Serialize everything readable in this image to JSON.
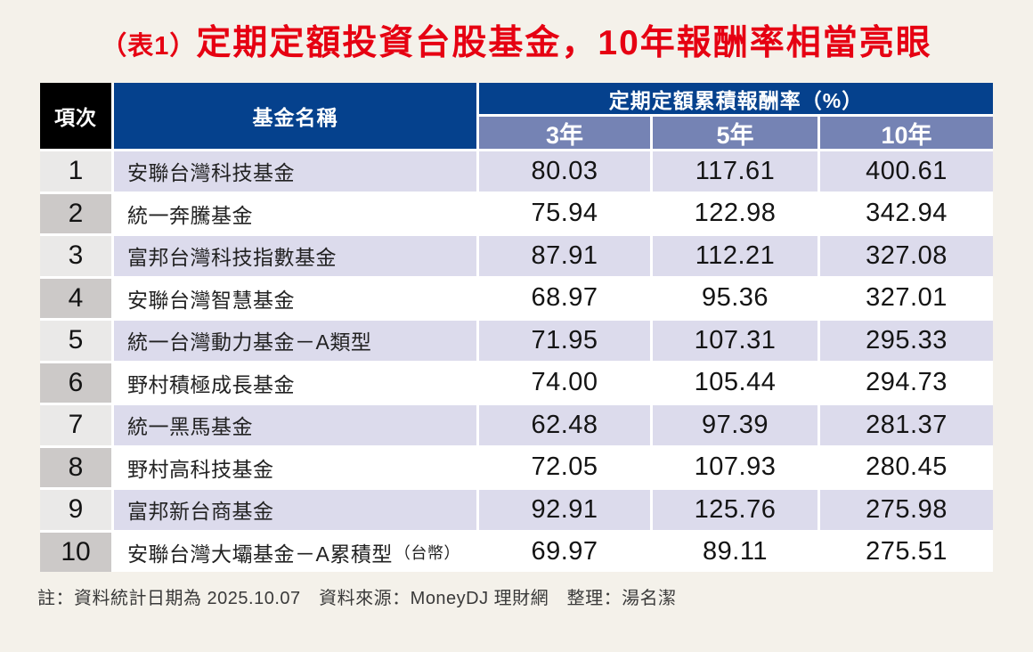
{
  "title": {
    "prefix": "（表1）",
    "main": "定期定額投資台股基金，10年報酬率相當亮眼"
  },
  "table": {
    "col_headers": {
      "item": "項次",
      "fund_name": "基金名稱",
      "returns_group": "定期定額累積報酬率（%）",
      "periods": [
        "3年",
        "5年",
        "10年"
      ]
    },
    "rows": [
      {
        "rank": "1",
        "name": "安聯台灣科技基金",
        "note": "",
        "y3": "80.03",
        "y5": "117.61",
        "y10": "400.61"
      },
      {
        "rank": "2",
        "name": "統一奔騰基金",
        "note": "",
        "y3": "75.94",
        "y5": "122.98",
        "y10": "342.94"
      },
      {
        "rank": "3",
        "name": "富邦台灣科技指數基金",
        "note": "",
        "y3": "87.91",
        "y5": "112.21",
        "y10": "327.08"
      },
      {
        "rank": "4",
        "name": "安聯台灣智慧基金",
        "note": "",
        "y3": "68.97",
        "y5": "95.36",
        "y10": "327.01"
      },
      {
        "rank": "5",
        "name": "統一台灣動力基金－A類型",
        "note": "",
        "y3": "71.95",
        "y5": "107.31",
        "y10": "295.33"
      },
      {
        "rank": "6",
        "name": "野村積極成長基金",
        "note": "",
        "y3": "74.00",
        "y5": "105.44",
        "y10": "294.73"
      },
      {
        "rank": "7",
        "name": "統一黑馬基金",
        "note": "",
        "y3": "62.48",
        "y5": "97.39",
        "y10": "281.37"
      },
      {
        "rank": "8",
        "name": "野村高科技基金",
        "note": "",
        "y3": "72.05",
        "y5": "107.93",
        "y10": "280.45"
      },
      {
        "rank": "9",
        "name": "富邦新台商基金",
        "note": "",
        "y3": "92.91",
        "y5": "125.76",
        "y10": "275.98"
      },
      {
        "rank": "10",
        "name": "安聯台灣大壩基金－A累積型",
        "note": "（台幣）",
        "y3": "69.97",
        "y5": "89.11",
        "y10": "275.51"
      }
    ]
  },
  "footer": {
    "note": "註：資料統計日期為 2025.10.07　資料來源：MoneyDJ 理財網　整理：湯名潔"
  },
  "colors": {
    "page_background": "#f4f1ea",
    "title_red": "#e60012",
    "header_navy": "#05418d",
    "header_black": "#000000",
    "subheader_purple": "#7583b4",
    "row_lavender": "#dcdbec",
    "row_white": "#ffffff",
    "rank_light_gray": "#eae9e8",
    "rank_dark_gray": "#ccc9c8",
    "grid_line": "#ffffff"
  },
  "chart_data": {
    "type": "table",
    "title": "（表1）定期定額投資台股基金，10年報酬率相當亮眼",
    "group_header": "定期定額累積報酬率（%）",
    "columns": [
      "項次",
      "基金名稱",
      "3年",
      "5年",
      "10年"
    ],
    "rows": [
      [
        1,
        "安聯台灣科技基金",
        80.03,
        117.61,
        400.61
      ],
      [
        2,
        "統一奔騰基金",
        75.94,
        122.98,
        342.94
      ],
      [
        3,
        "富邦台灣科技指數基金",
        87.91,
        112.21,
        327.08
      ],
      [
        4,
        "安聯台灣智慧基金",
        68.97,
        95.36,
        327.01
      ],
      [
        5,
        "統一台灣動力基金－A類型",
        71.95,
        107.31,
        295.33
      ],
      [
        6,
        "野村積極成長基金",
        74.0,
        105.44,
        294.73
      ],
      [
        7,
        "統一黑馬基金",
        62.48,
        97.39,
        281.37
      ],
      [
        8,
        "野村高科技基金",
        72.05,
        107.93,
        280.45
      ],
      [
        9,
        "富邦新台商基金",
        92.91,
        125.76,
        275.98
      ],
      [
        10,
        "安聯台灣大壩基金－A累積型（台幣）",
        69.97,
        89.11,
        275.51
      ]
    ],
    "note": "註：資料統計日期為 2025.10.07　資料來源：MoneyDJ 理財網　整理：湯名潔"
  }
}
